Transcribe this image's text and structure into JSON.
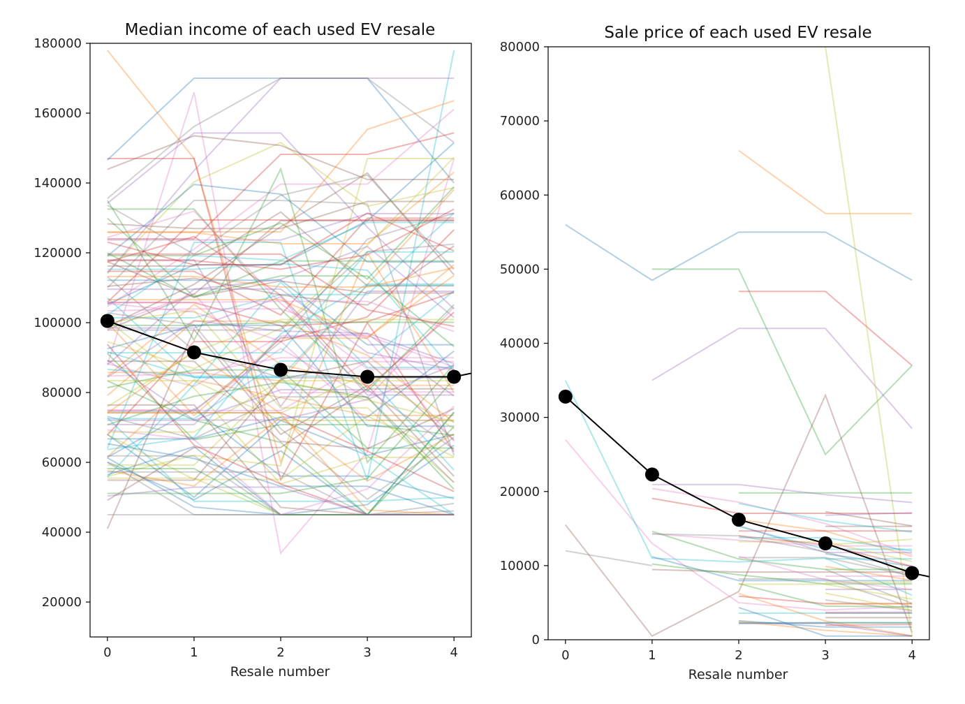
{
  "chart_data": [
    {
      "type": "line",
      "title": "Median income of each used EV resale",
      "xlabel": "Resale number",
      "ylabel": "",
      "x": [
        0,
        1,
        2,
        3,
        4
      ],
      "xlim": [
        -0.2,
        4.2
      ],
      "ylim": [
        10000,
        180000
      ],
      "yticks": [
        20000,
        40000,
        60000,
        80000,
        100000,
        120000,
        140000,
        160000,
        180000
      ],
      "grid": false,
      "mean_series": {
        "name": "median",
        "values": [
          100500,
          91500,
          86500,
          84500,
          84500
        ],
        "tail_to": 85500,
        "color": "#000000"
      },
      "background_series_count": 120,
      "background_series_sample": [
        {
          "values": [
            68000,
            50000,
            72000,
            62000,
            68000
          ]
        },
        {
          "values": [
            178000,
            147000,
            60000,
            120000,
            80000
          ]
        },
        {
          "values": [
            135000,
            95000,
            144000,
            60000,
            88000
          ]
        },
        {
          "values": [
            147000,
            147000,
            55000,
            100000,
            63000
          ]
        },
        {
          "values": [
            118000,
            118000,
            76000,
            109000,
            109000
          ]
        },
        {
          "values": [
            41000,
            98000,
            68000,
            82000,
            56000
          ]
        },
        {
          "values": [
            88000,
            166000,
            34000,
            63000,
            147000
          ]
        },
        {
          "values": [
            110000,
            135000,
            135000,
            134000,
            62000
          ]
        },
        {
          "values": [
            56000,
            62000,
            59000,
            147000,
            147000
          ]
        },
        {
          "values": [
            64000,
            123000,
            123000,
            55000,
            178000
          ]
        }
      ],
      "colors": [
        "#1f77b4",
        "#ff7f0e",
        "#2ca02c",
        "#d62728",
        "#9467bd",
        "#8c564b",
        "#e377c2",
        "#7f7f7f",
        "#bcbd22",
        "#17becf"
      ]
    },
    {
      "type": "line",
      "title": "Sale price of each used EV resale",
      "xlabel": "Resale number",
      "ylabel": "",
      "x": [
        0,
        1,
        2,
        3,
        4
      ],
      "xlim": [
        -0.2,
        4.2
      ],
      "ylim": [
        0,
        80000
      ],
      "yticks": [
        0,
        10000,
        20000,
        30000,
        40000,
        50000,
        60000,
        70000,
        80000
      ],
      "grid": false,
      "mean_series": {
        "name": "median",
        "values": [
          32800,
          22300,
          16200,
          13000,
          9000
        ],
        "tail_to": 8500,
        "color": "#000000"
      },
      "background_series_count": 60,
      "background_series_sample": [
        {
          "values": [
            56000,
            48500,
            55000,
            55000,
            48500
          ]
        },
        {
          "values": [
            null,
            null,
            66000,
            57500,
            57500
          ]
        },
        {
          "values": [
            null,
            50000,
            50000,
            25000,
            37000
          ]
        },
        {
          "values": [
            null,
            null,
            47000,
            47000,
            37000
          ]
        },
        {
          "values": [
            null,
            35000,
            42000,
            42000,
            28500
          ]
        },
        {
          "values": [
            15500,
            500,
            6500,
            33000,
            1000
          ]
        },
        {
          "values": [
            27000,
            13000,
            5000,
            4000,
            4500
          ]
        },
        {
          "values": [
            12000,
            10000,
            null,
            null,
            null
          ]
        },
        {
          "values": [
            null,
            null,
            null,
            80000,
            500
          ]
        },
        {
          "values": [
            35000,
            11000,
            10500,
            11000,
            6000
          ]
        }
      ],
      "colors": [
        "#1f77b4",
        "#ff7f0e",
        "#2ca02c",
        "#d62728",
        "#9467bd",
        "#8c564b",
        "#e377c2",
        "#7f7f7f",
        "#bcbd22",
        "#17becf"
      ]
    }
  ]
}
